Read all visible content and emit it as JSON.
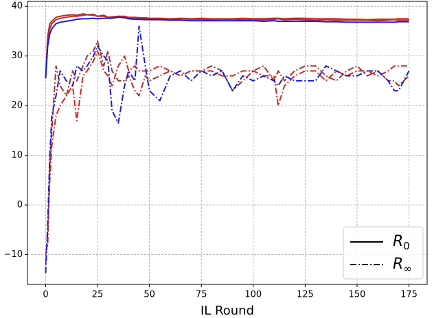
{
  "chart_data": {
    "type": "line",
    "x_label": "IL Round",
    "x": [
      0,
      1,
      2,
      3,
      5,
      7,
      10,
      13,
      15,
      18,
      20,
      23,
      25,
      28,
      30,
      32,
      35,
      38,
      40,
      43,
      45,
      48,
      50,
      55,
      60,
      65,
      70,
      75,
      80,
      85,
      90,
      95,
      100,
      105,
      110,
      112,
      115,
      120,
      125,
      130,
      135,
      140,
      145,
      150,
      155,
      160,
      165,
      168,
      170,
      175
    ],
    "series": [
      {
        "color": "#dd2222",
        "style": "solid",
        "values": [
          25.5,
          33,
          35.5,
          36.5,
          37.3,
          37.6,
          37.8,
          38,
          38,
          38.2,
          38.3,
          38.2,
          38,
          38,
          37.8,
          37.8,
          38,
          38,
          37.8,
          37.8,
          37.7,
          37.7,
          37.6,
          37.6,
          37.5,
          37.6,
          37.5,
          37.6,
          37.5,
          37.5,
          37.5,
          37.6,
          37.5,
          37.5,
          37.6,
          37.6,
          37.5,
          37.6,
          37.6,
          37.5,
          37.5,
          37.5,
          37.4,
          37.4,
          37.3,
          37.4,
          37.4,
          37.4,
          37.5,
          37.5
        ]
      },
      {
        "color": "#a83232",
        "style": "solid",
        "values": [
          25.8,
          34,
          36.5,
          37,
          37.8,
          38,
          38.2,
          38.3,
          38.2,
          38.5,
          38.3,
          38.4,
          38,
          38.2,
          37.8,
          37.9,
          38,
          37.8,
          37.7,
          37.5,
          37.6,
          37.5,
          37.4,
          37.4,
          37.4,
          37.5,
          37.4,
          37.4,
          37.3,
          37.4,
          37.4,
          37.3,
          37.3,
          37.3,
          37.4,
          37.5,
          37.3,
          37.4,
          37.3,
          37.2,
          37.3,
          37.2,
          37.2,
          37.2,
          37.2,
          37.1,
          37.2,
          37.3,
          37.2,
          37.2
        ]
      },
      {
        "color": "#1a1ae0",
        "style": "solid",
        "values": [
          25.5,
          32,
          34.5,
          35.5,
          36.5,
          36.8,
          37,
          37.2,
          37.4,
          37.5,
          37.5,
          37.6,
          37.5,
          37.6,
          37.6,
          37.6,
          37.8,
          37.7,
          37.5,
          37.4,
          37.4,
          37.3,
          37.3,
          37.3,
          37.2,
          37.2,
          37.1,
          37.1,
          37.1,
          37.1,
          37.1,
          37.1,
          37.1,
          37,
          37.1,
          37,
          37,
          37,
          37,
          37,
          36.9,
          36.9,
          36.8,
          36.8,
          36.8,
          36.8,
          36.8,
          36.8,
          36.9,
          36.9
        ]
      },
      {
        "color": "#dd2222",
        "style": "dashdot",
        "values": [
          -12,
          -5,
          5,
          12,
          18,
          20,
          22,
          24,
          17,
          26,
          27,
          29,
          31,
          27,
          26,
          24,
          28,
          30,
          27,
          28,
          27,
          27,
          27,
          28,
          27,
          26,
          27,
          27,
          27,
          26,
          26,
          27,
          27,
          26,
          26,
          20,
          24,
          26,
          27,
          27,
          25,
          27,
          26,
          27,
          27,
          26,
          27,
          28,
          28,
          28
        ]
      },
      {
        "color": "#a83232",
        "style": "dashdot",
        "values": [
          -10,
          -8,
          8,
          15,
          28,
          24,
          22,
          27,
          25,
          28,
          30,
          31,
          33,
          28,
          31,
          27,
          25,
          25,
          26,
          23,
          22,
          26,
          25,
          26,
          27,
          26,
          27,
          27,
          28,
          27,
          23,
          25,
          27,
          28,
          25,
          27,
          25,
          27,
          28,
          28,
          26,
          25,
          27,
          28,
          26,
          27,
          25,
          25,
          24,
          26
        ]
      },
      {
        "color": "#1a1ae0",
        "style": "dashdot",
        "values": [
          -13.7,
          -4,
          10,
          18,
          22,
          27,
          25,
          24,
          28,
          27,
          28,
          30,
          32,
          30,
          29,
          19,
          16.5,
          24,
          27,
          25,
          36,
          28,
          23,
          21,
          26,
          27,
          25,
          27,
          26,
          27,
          23,
          26,
          25,
          26,
          25,
          24,
          26,
          25,
          25,
          25,
          28,
          27,
          26,
          26,
          27,
          27,
          25,
          23,
          23,
          27
        ]
      }
    ],
    "xlim": [
      -8.75,
      183.75
    ],
    "ylim": [
      -16,
      41
    ],
    "xticks": [
      0,
      25,
      50,
      75,
      100,
      125,
      150,
      175
    ],
    "yticks": [
      {
        "value": -10,
        "label": "−10"
      },
      0,
      10,
      20,
      30,
      40
    ],
    "grid": true,
    "legend_position": "lower right",
    "legend": [
      {
        "symbol": "R",
        "subscript": "0",
        "style": "solid",
        "color": "#000000"
      },
      {
        "symbol": "R",
        "subscript": "∞",
        "style": "dashdot",
        "color": "#000000"
      }
    ]
  }
}
